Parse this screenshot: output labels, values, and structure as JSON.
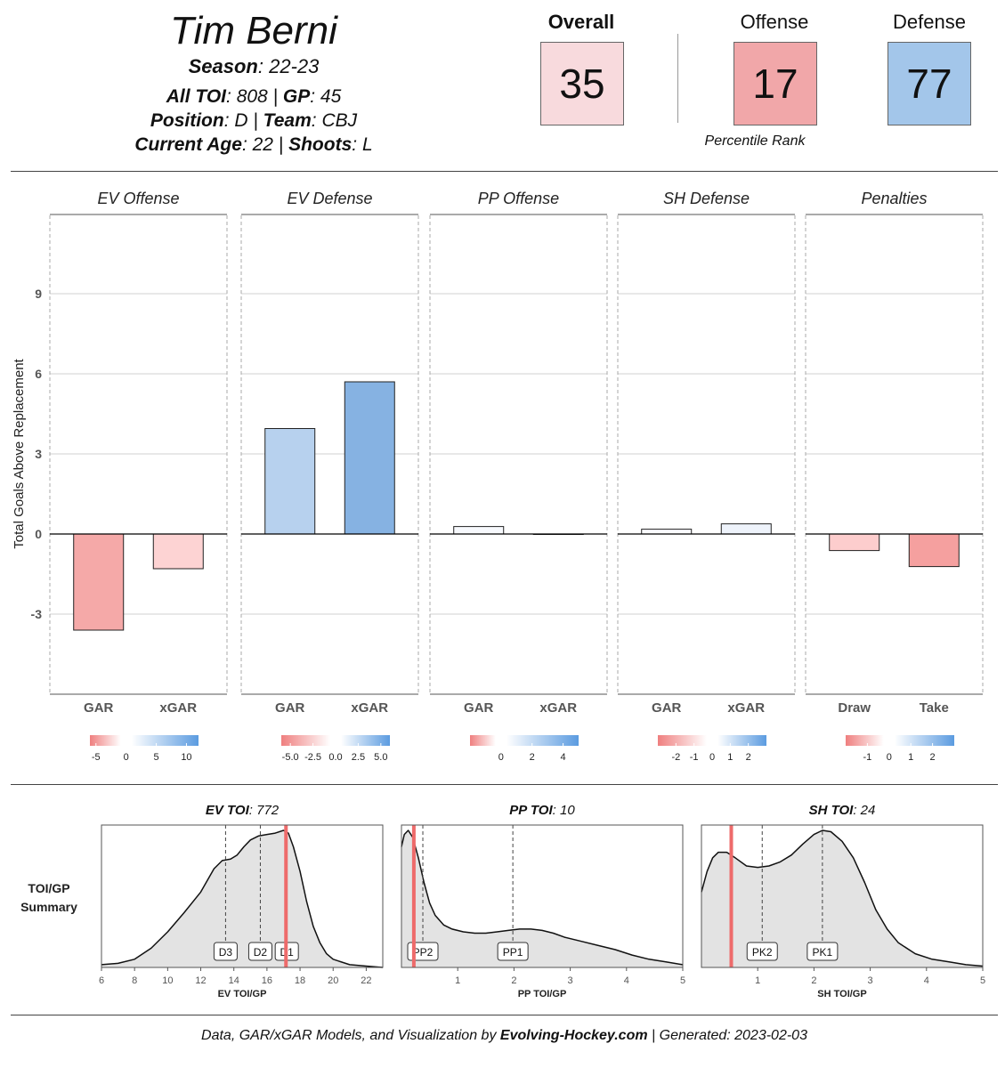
{
  "player": {
    "name": "Tim Berni",
    "season_label": "Season",
    "season": "22-23",
    "toi_label": "All TOI",
    "toi": "808",
    "gp_label": "GP",
    "gp": "45",
    "position_label": "Position",
    "position": "D",
    "team_label": "Team",
    "team": "CBJ",
    "age_label": "Current Age",
    "age": "22",
    "shoots_label": "Shoots",
    "shoots": "L"
  },
  "ranks": {
    "overall_label": "Overall",
    "overall": "35",
    "overall_color": "#f8dadd",
    "offense_label": "Offense",
    "offense": "17",
    "offense_color": "#f1a7a9",
    "defense_label": "Defense",
    "defense": "77",
    "defense_color": "#a3c6ea",
    "percentile_label": "Percentile Rank"
  },
  "chart_data": [
    {
      "type": "bar",
      "ylabel": "Total Goals Above Replacement",
      "ylim": [
        -6,
        12
      ],
      "yticks": [
        -3,
        0,
        3,
        6,
        9
      ],
      "grid": true,
      "panels": [
        {
          "title": "EV Offense",
          "categories": [
            "GAR",
            "xGAR"
          ],
          "values": [
            -3.6,
            -1.3
          ],
          "colors": [
            "#f5a9a8",
            "#fdd3d3"
          ],
          "scale": {
            "ticks": [
              "-5",
              "0",
              "5",
              "10"
            ],
            "min": -6,
            "max": 12
          }
        },
        {
          "title": "EV Defense",
          "categories": [
            "GAR",
            "xGAR"
          ],
          "values": [
            3.95,
            5.7
          ],
          "colors": [
            "#b7d1ee",
            "#86b2e2"
          ],
          "scale": {
            "ticks": [
              "-5.0",
              "-2.5",
              "0.0",
              "2.5",
              "5.0"
            ],
            "min": -6,
            "max": 6
          }
        },
        {
          "title": "PP Offense",
          "categories": [
            "GAR",
            "xGAR"
          ],
          "values": [
            0.28,
            0.0
          ],
          "colors": [
            "#f7f9fd",
            "#ffffff"
          ],
          "scale": {
            "ticks": [
              "0",
              "2",
              "4"
            ],
            "min": -2,
            "max": 5
          }
        },
        {
          "title": "SH Defense",
          "categories": [
            "GAR",
            "xGAR"
          ],
          "values": [
            0.18,
            0.38
          ],
          "colors": [
            "#fafbfe",
            "#eef3fb"
          ],
          "scale": {
            "ticks": [
              "-2",
              "-1",
              "0",
              "1",
              "2"
            ],
            "min": -3,
            "max": 3
          }
        },
        {
          "title": "Penalties",
          "categories": [
            "Draw",
            "Take"
          ],
          "values": [
            -0.62,
            -1.22
          ],
          "colors": [
            "#fdcdcd",
            "#f5a09f"
          ],
          "scale": {
            "ticks": [
              "-1",
              "0",
              "1",
              "2"
            ],
            "min": -2,
            "max": 3
          }
        }
      ]
    },
    {
      "type": "area",
      "side_label": [
        "TOI/GP",
        "Summary"
      ],
      "panels": [
        {
          "title_bold": "EV TOI",
          "title_value": "772",
          "xlabel": "EV TOI/GP",
          "xlim": [
            6,
            23
          ],
          "xticks": [
            "6",
            "8",
            "10",
            "12",
            "14",
            "16",
            "18",
            "20",
            "22"
          ],
          "player_value": 17.15,
          "markers": [
            {
              "label": "D3",
              "x": 13.5
            },
            {
              "label": "D2",
              "x": 15.6
            },
            {
              "label": "D1",
              "x": 17.2
            }
          ],
          "density_x": [
            6,
            7,
            8,
            9,
            10,
            11,
            12,
            12.8,
            13.3,
            13.8,
            14.2,
            14.6,
            15.0,
            15.5,
            16.0,
            16.5,
            17.0,
            17.3,
            17.6,
            18.0,
            18.4,
            18.8,
            19.2,
            19.6,
            20,
            21,
            22,
            23
          ],
          "density_y": [
            0.02,
            0.03,
            0.06,
            0.14,
            0.26,
            0.4,
            0.55,
            0.72,
            0.78,
            0.79,
            0.82,
            0.88,
            0.93,
            0.96,
            0.97,
            0.98,
            1.0,
            0.98,
            0.88,
            0.7,
            0.48,
            0.3,
            0.18,
            0.1,
            0.06,
            0.02,
            0.01,
            0.0
          ]
        },
        {
          "title_bold": "PP TOI",
          "title_value": "10",
          "xlabel": "PP TOI/GP",
          "xlim": [
            0,
            5
          ],
          "xticks": [
            "1",
            "2",
            "3",
            "4",
            "5"
          ],
          "player_value": 0.22,
          "markers": [
            {
              "label": "PP2",
              "x": 0.38
            },
            {
              "label": "PP1",
              "x": 1.98
            }
          ],
          "density_x": [
            0,
            0.05,
            0.12,
            0.2,
            0.3,
            0.4,
            0.5,
            0.6,
            0.75,
            0.9,
            1.1,
            1.3,
            1.5,
            1.7,
            1.9,
            2.1,
            2.3,
            2.5,
            2.7,
            2.9,
            3.2,
            3.5,
            3.8,
            4.1,
            4.4,
            4.7,
            5.0
          ],
          "density_y": [
            0.88,
            0.97,
            1.0,
            0.95,
            0.8,
            0.62,
            0.47,
            0.38,
            0.31,
            0.28,
            0.26,
            0.25,
            0.25,
            0.26,
            0.27,
            0.28,
            0.28,
            0.27,
            0.25,
            0.22,
            0.19,
            0.16,
            0.13,
            0.09,
            0.06,
            0.04,
            0.02
          ]
        },
        {
          "title_bold": "SH TOI",
          "title_value": "24",
          "xlabel": "SH TOI/GP",
          "xlim": [
            0,
            5
          ],
          "xticks": [
            "1",
            "2",
            "3",
            "4",
            "5"
          ],
          "player_value": 0.53,
          "markers": [
            {
              "label": "PK2",
              "x": 1.08
            },
            {
              "label": "PK1",
              "x": 2.15
            }
          ],
          "density_x": [
            0,
            0.1,
            0.2,
            0.3,
            0.45,
            0.6,
            0.8,
            1.0,
            1.2,
            1.4,
            1.6,
            1.8,
            2.0,
            2.15,
            2.3,
            2.5,
            2.7,
            2.9,
            3.1,
            3.3,
            3.5,
            3.8,
            4.1,
            4.4,
            4.7,
            5.0
          ],
          "density_y": [
            0.55,
            0.7,
            0.8,
            0.84,
            0.84,
            0.8,
            0.74,
            0.73,
            0.74,
            0.77,
            0.82,
            0.9,
            0.97,
            1.0,
            0.99,
            0.92,
            0.8,
            0.62,
            0.42,
            0.28,
            0.18,
            0.1,
            0.06,
            0.04,
            0.02,
            0.01
          ]
        }
      ]
    }
  ],
  "footer": {
    "prefix": "Data, GAR/xGAR Models, and Visualization by ",
    "site": "Evolving-Hockey.com",
    "suffix": " | Generated: 2023-02-03"
  }
}
